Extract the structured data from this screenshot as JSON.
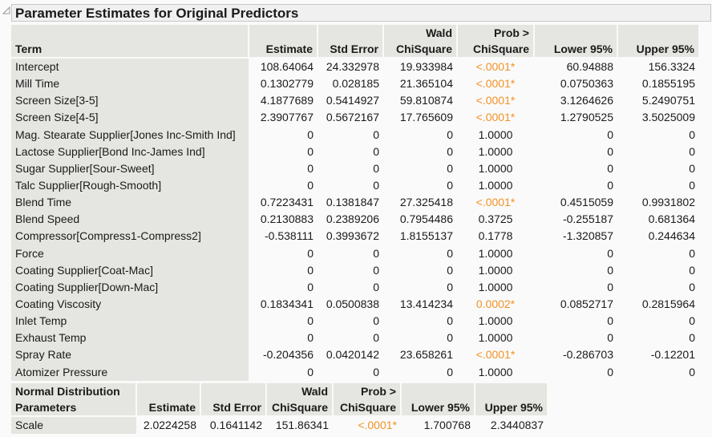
{
  "title": "Parameter Estimates for Original Predictors",
  "colors": {
    "significant": "#f39224",
    "header_bg": "#e5e5e1"
  },
  "main": {
    "headers": [
      [
        "",
        "Term"
      ],
      [
        "",
        "Estimate"
      ],
      [
        "",
        "Std Error"
      ],
      [
        "Wald",
        "ChiSquare"
      ],
      [
        "Prob >",
        "ChiSquare"
      ],
      [
        "",
        "Lower 95%"
      ],
      [
        "",
        "Upper 95%"
      ]
    ],
    "rows": [
      [
        "Intercept",
        "108.64064",
        "24.332978",
        "19.933984",
        "<.0001*",
        "60.94888",
        "156.3324"
      ],
      [
        "Mill Time",
        "0.1302779",
        "0.028185",
        "21.365104",
        "<.0001*",
        "0.0750363",
        "0.1855195"
      ],
      [
        "Screen Size[3-5]",
        "4.1877689",
        "0.5414927",
        "59.810874",
        "<.0001*",
        "3.1264626",
        "5.2490751"
      ],
      [
        "Screen Size[4-5]",
        "2.3907767",
        "0.5672167",
        "17.765609",
        "<.0001*",
        "1.2790525",
        "3.5025009"
      ],
      [
        "Mag. Stearate Supplier[Jones Inc-Smith Ind]",
        "0",
        "0",
        "0",
        "1.0000",
        "0",
        "0"
      ],
      [
        "Lactose Supplier[Bond Inc-James Ind]",
        "0",
        "0",
        "0",
        "1.0000",
        "0",
        "0"
      ],
      [
        "Sugar Supplier[Sour-Sweet]",
        "0",
        "0",
        "0",
        "1.0000",
        "0",
        "0"
      ],
      [
        "Talc Supplier[Rough-Smooth]",
        "0",
        "0",
        "0",
        "1.0000",
        "0",
        "0"
      ],
      [
        "Blend Time",
        "0.7223431",
        "0.1381847",
        "27.325418",
        "<.0001*",
        "0.4515059",
        "0.9931802"
      ],
      [
        "Blend Speed",
        "0.2130883",
        "0.2389206",
        "0.7954486",
        "0.3725",
        "-0.255187",
        "0.681364"
      ],
      [
        "Compressor[Compress1-Compress2]",
        "-0.538111",
        "0.3993672",
        "1.8155137",
        "0.1778",
        "-1.320857",
        "0.244634"
      ],
      [
        "Force",
        "0",
        "0",
        "0",
        "1.0000",
        "0",
        "0"
      ],
      [
        "Coating Supplier[Coat-Mac]",
        "0",
        "0",
        "0",
        "1.0000",
        "0",
        "0"
      ],
      [
        "Coating Supplier[Down-Mac]",
        "0",
        "0",
        "0",
        "1.0000",
        "0",
        "0"
      ],
      [
        "Coating Viscosity",
        "0.1834341",
        "0.0500838",
        "13.414234",
        "0.0002*",
        "0.0852717",
        "0.2815964"
      ],
      [
        "Inlet Temp",
        "0",
        "0",
        "0",
        "1.0000",
        "0",
        "0"
      ],
      [
        "Exhaust Temp",
        "0",
        "0",
        "0",
        "1.0000",
        "0",
        "0"
      ],
      [
        "Spray Rate",
        "-0.204356",
        "0.0420142",
        "23.658261",
        "<.0001*",
        "-0.286703",
        "-0.12201"
      ],
      [
        "Atomizer Pressure",
        "0",
        "0",
        "0",
        "1.0000",
        "0",
        "0"
      ]
    ]
  },
  "dist": {
    "headers": [
      [
        "Normal Distribution",
        "Parameters"
      ],
      [
        "",
        "Estimate"
      ],
      [
        "",
        "Std Error"
      ],
      [
        "Wald",
        "ChiSquare"
      ],
      [
        "Prob >",
        "ChiSquare"
      ],
      [
        "",
        "Lower 95%"
      ],
      [
        "",
        "Upper 95%"
      ]
    ],
    "rows": [
      [
        "Scale",
        "2.0224258",
        "0.1641142",
        "151.86341",
        "<.0001*",
        "1.700768",
        "2.3440837"
      ]
    ]
  }
}
